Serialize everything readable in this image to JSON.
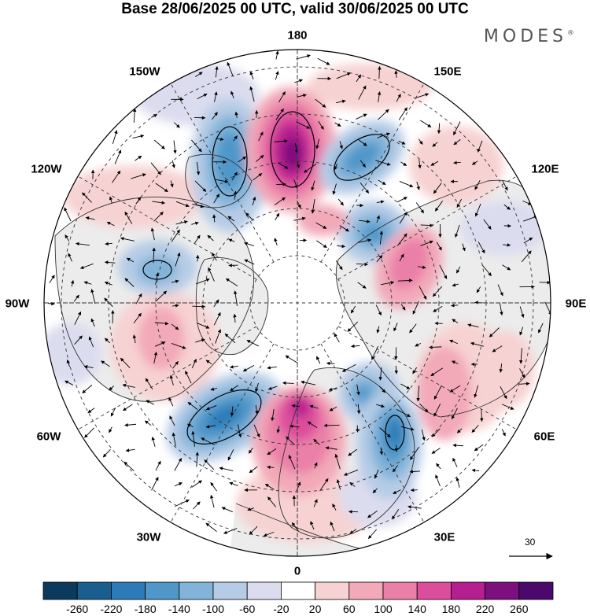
{
  "title": "Base 28/06/2025 00 UTC, valid 30/06/2025 00 UTC",
  "brand": "MODES",
  "brand_mark": "®",
  "lon_labels": {
    "180": "180",
    "150E": "150E",
    "120E": "120E",
    "90E": "90E",
    "60E": "60E",
    "30E": "30E",
    "0": "0",
    "30W": "30W",
    "60W": "60W",
    "90W": "90W",
    "120W": "120W",
    "150W": "150W"
  },
  "reference_vector": "30",
  "colorbar": {
    "ticks": [
      "-260",
      "-220",
      "-180",
      "-140",
      "-100",
      "-60",
      "-20",
      "20",
      "60",
      "100",
      "140",
      "180",
      "220",
      "260"
    ],
    "colors": [
      "#0b3a5c",
      "#1a5e8f",
      "#2c7bb8",
      "#4f97c9",
      "#82b3d9",
      "#b6cce6",
      "#dcdcef",
      "#ffffff",
      "#f7d2d2",
      "#f2a9b8",
      "#ea7fa8",
      "#dc4d9c",
      "#b51f8f",
      "#7d0f7e",
      "#4b0a6b"
    ]
  },
  "colors": {
    "land_fill": "#ececec",
    "coastline": "#333333",
    "graticule": "#333333"
  }
}
